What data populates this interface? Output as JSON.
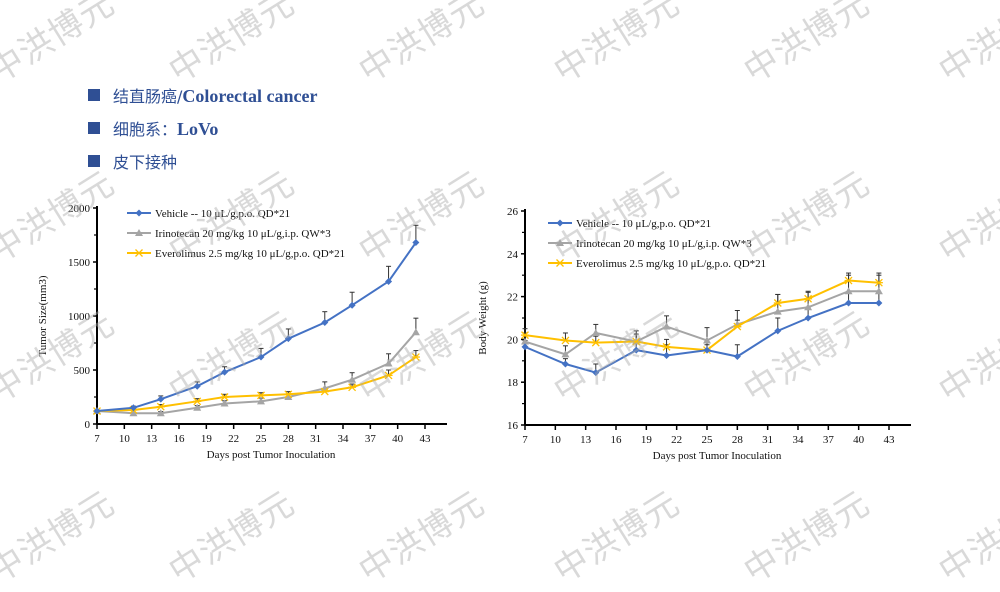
{
  "bullets": [
    {
      "cn": "结直肠癌/",
      "en": "Colorectal cancer"
    },
    {
      "cn": "细胞系：",
      "en": "LoVo"
    },
    {
      "cn": "皮下接种",
      "en": ""
    }
  ],
  "watermark": "中洪博元",
  "colors": {
    "vehicle": "#4472c4",
    "irinotecan": "#a5a5a5",
    "everolimus": "#ffc000",
    "bullet": "#2f4f94"
  },
  "chart_data": [
    {
      "type": "line",
      "title": "",
      "xlabel": "Days post Tumor Inoculation",
      "ylabel": "Tumor Size(mm3)",
      "xlim": [
        7,
        43
      ],
      "ylim": [
        0,
        2000
      ],
      "xticks": [
        7,
        10,
        13,
        16,
        19,
        22,
        25,
        28,
        31,
        34,
        37,
        40,
        43
      ],
      "yticks": [
        0,
        500,
        1000,
        1500,
        2000
      ],
      "legend_position": "top-left",
      "grid": false,
      "x": [
        7,
        11,
        14,
        18,
        21,
        25,
        28,
        32,
        35,
        39,
        42
      ],
      "series": [
        {
          "name": "Vehicle -- 10 μL/g,p.o. QD*21",
          "marker": "diamond",
          "color_key": "vehicle",
          "values": [
            120,
            150,
            230,
            350,
            480,
            620,
            790,
            940,
            1100,
            1320,
            1680
          ],
          "errors": [
            10,
            15,
            30,
            40,
            50,
            80,
            90,
            100,
            120,
            140,
            160
          ]
        },
        {
          "name": "Irinotecan 20 mg/kg 10 μL/g,i.p. QW*3",
          "marker": "triangle",
          "color_key": "irinotecan",
          "values": [
            120,
            100,
            100,
            150,
            190,
            210,
            250,
            330,
            410,
            560,
            850
          ],
          "errors": [
            10,
            10,
            15,
            20,
            25,
            30,
            30,
            60,
            65,
            90,
            130
          ]
        },
        {
          "name": "Everolimus 2.5 mg/kg 10 μL/g,p.o. QD*21",
          "marker": "x",
          "color_key": "everolimus",
          "values": [
            120,
            130,
            160,
            210,
            250,
            265,
            275,
            300,
            340,
            450,
            620
          ],
          "errors": [
            10,
            15,
            20,
            25,
            25,
            25,
            25,
            30,
            30,
            50,
            60
          ]
        }
      ]
    },
    {
      "type": "line",
      "title": "",
      "xlabel": "Days post Tumor Inoculation",
      "ylabel": "Body Weight (g)",
      "xlim": [
        7,
        43
      ],
      "ylim": [
        16,
        26
      ],
      "xticks": [
        7,
        10,
        13,
        16,
        19,
        22,
        25,
        28,
        31,
        34,
        37,
        40,
        43
      ],
      "yticks": [
        16,
        18,
        20,
        22,
        24,
        26
      ],
      "legend_position": "top-left",
      "grid": false,
      "x": [
        7,
        11,
        14,
        18,
        21,
        25,
        28,
        32,
        35,
        39,
        42
      ],
      "series": [
        {
          "name": "Vehicle -- 10 μL/g,p.o. QD*21",
          "marker": "diamond",
          "color_key": "vehicle",
          "values": [
            19.65,
            18.85,
            18.45,
            19.5,
            19.25,
            19.5,
            19.2,
            20.4,
            21.0,
            21.7,
            21.7
          ],
          "errors": [
            0.3,
            0.25,
            0.4,
            0.3,
            0.5,
            0.4,
            0.55,
            0.6,
            0.5,
            0.5,
            0.5
          ]
        },
        {
          "name": "Irinotecan 20 mg/kg 10 μL/g,i.p. QW*3",
          "marker": "triangle",
          "color_key": "irinotecan",
          "values": [
            19.9,
            19.3,
            20.3,
            19.9,
            20.6,
            19.95,
            20.7,
            21.3,
            21.5,
            22.25,
            22.25
          ],
          "errors": [
            0.4,
            0.4,
            0.4,
            0.5,
            0.5,
            0.6,
            0.65,
            0.8,
            0.7,
            0.75,
            0.75
          ]
        },
        {
          "name": "Everolimus 2.5 mg/kg 10 μL/g,p.o. QD*21",
          "marker": "x",
          "color_key": "everolimus",
          "values": [
            20.2,
            19.95,
            19.85,
            19.9,
            19.65,
            19.5,
            20.6,
            21.7,
            21.9,
            22.75,
            22.65
          ],
          "errors": [
            0.3,
            0.35,
            0.3,
            0.35,
            0.35,
            0.25,
            0.3,
            0.4,
            0.35,
            0.35,
            0.45
          ]
        }
      ]
    }
  ]
}
